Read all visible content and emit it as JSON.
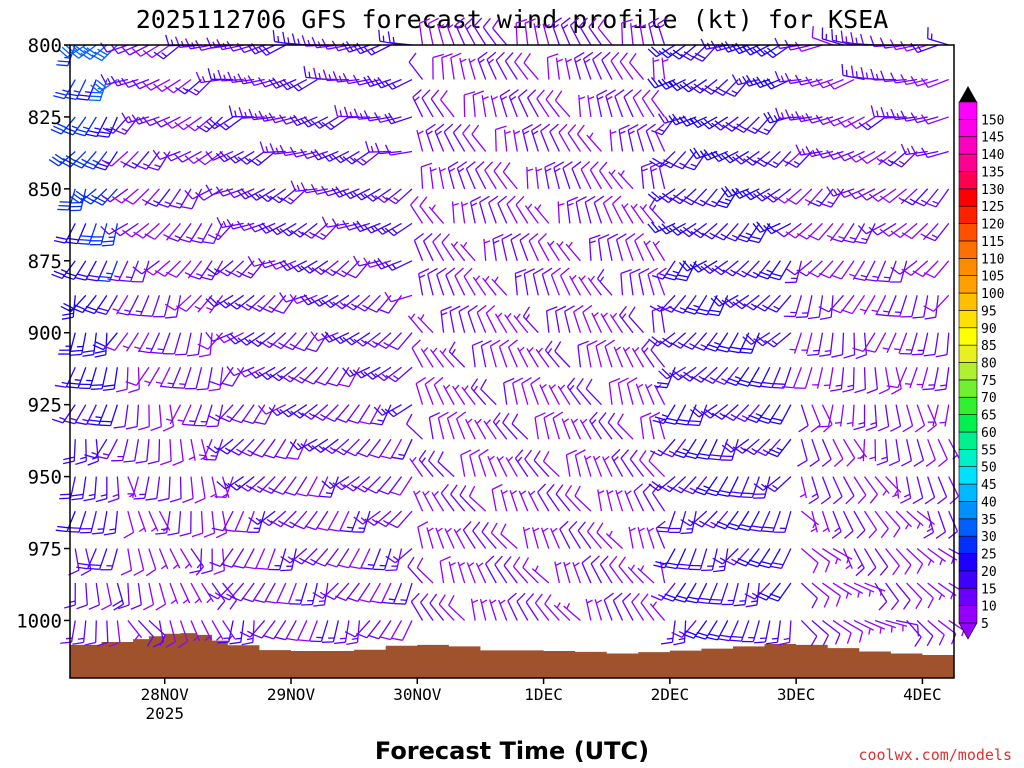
{
  "chart_data": {
    "type": "wind-profile",
    "title": "2025112706 GFS forecast wind profile (kt) for KSEA",
    "xlabel": "Forecast Time (UTC)",
    "ylabel": "",
    "watermark": "coolwx.com/models",
    "y_axis": {
      "unit": "hPa",
      "range": [
        800,
        1020
      ],
      "ticks": [
        800,
        825,
        850,
        875,
        900,
        925,
        950,
        975,
        1000
      ]
    },
    "x_axis": {
      "unit": "hours since 2025-11-28 00Z",
      "range": [
        -18,
        150
      ],
      "ticks": [
        {
          "hour": 0,
          "label": "28NOV",
          "sublabel": "2025"
        },
        {
          "hour": 24,
          "label": "29NOV",
          "sublabel": ""
        },
        {
          "hour": 48,
          "label": "30NOV",
          "sublabel": ""
        },
        {
          "hour": 72,
          "label": "1DEC",
          "sublabel": ""
        },
        {
          "hour": 96,
          "label": "2DEC",
          "sublabel": ""
        },
        {
          "hour": 120,
          "label": "3DEC",
          "sublabel": ""
        },
        {
          "hour": 144,
          "label": "4DEC",
          "sublabel": ""
        }
      ]
    },
    "colorbar": {
      "levels": [
        5,
        10,
        15,
        20,
        25,
        30,
        35,
        40,
        45,
        50,
        55,
        60,
        65,
        70,
        75,
        80,
        85,
        90,
        95,
        100,
        105,
        110,
        115,
        120,
        125,
        130,
        135,
        140,
        145,
        150
      ],
      "colors": [
        "#9400ff",
        "#6a00ff",
        "#4000ff",
        "#1c00ff",
        "#0030ff",
        "#0060ff",
        "#0090ff",
        "#00b8ff",
        "#00e0ff",
        "#00f0c8",
        "#00f090",
        "#00f050",
        "#30f030",
        "#70f030",
        "#b0f030",
        "#e8f020",
        "#ffff00",
        "#ffe000",
        "#ffc000",
        "#ffa000",
        "#ff8c00",
        "#ff7000",
        "#ff5000",
        "#ff2000",
        "#ff0000",
        "#ff0050",
        "#ff0090",
        "#ff00c0",
        "#ff00e8",
        "#ff00ff"
      ]
    },
    "terrain": {
      "color": "#a0522d",
      "surface_pressure": [
        {
          "hour": -18,
          "p": 1008.5
        },
        {
          "hour": -12,
          "p": 1007.5
        },
        {
          "hour": -6,
          "p": 1006.5
        },
        {
          "hour": -3,
          "p": 1005.5
        },
        {
          "hour": 0,
          "p": 1004.6
        },
        {
          "hour": 3,
          "p": 1004.4
        },
        {
          "hour": 6,
          "p": 1005.0
        },
        {
          "hour": 9,
          "p": 1007.0
        },
        {
          "hour": 12,
          "p": 1008.6
        },
        {
          "hour": 18,
          "p": 1010.3
        },
        {
          "hour": 24,
          "p": 1010.6
        },
        {
          "hour": 36,
          "p": 1010.2
        },
        {
          "hour": 42,
          "p": 1008.8
        },
        {
          "hour": 48,
          "p": 1008.5
        },
        {
          "hour": 54,
          "p": 1009.0
        },
        {
          "hour": 60,
          "p": 1010.4
        },
        {
          "hour": 72,
          "p": 1010.6
        },
        {
          "hour": 78,
          "p": 1010.9
        },
        {
          "hour": 84,
          "p": 1011.5
        },
        {
          "hour": 90,
          "p": 1011.0
        },
        {
          "hour": 96,
          "p": 1010.5
        },
        {
          "hour": 102,
          "p": 1009.8
        },
        {
          "hour": 108,
          "p": 1009.0
        },
        {
          "hour": 114,
          "p": 1008.2
        },
        {
          "hour": 120,
          "p": 1008.5
        },
        {
          "hour": 126,
          "p": 1009.6
        },
        {
          "hour": 132,
          "p": 1010.8
        },
        {
          "hour": 138,
          "p": 1011.5
        },
        {
          "hour": 144,
          "p": 1012.0
        },
        {
          "hour": 150,
          "p": 1012.0
        }
      ]
    },
    "barb_columns": [
      -17,
      -15,
      -13,
      -11,
      -9,
      -7,
      -5,
      -3,
      -1,
      1,
      3,
      5,
      7,
      9,
      11,
      13,
      15,
      17,
      19,
      21,
      23,
      25,
      27,
      29,
      31,
      33,
      35,
      37,
      39,
      41,
      43,
      45,
      47,
      49,
      51,
      53,
      55,
      57,
      59,
      61,
      63,
      65,
      67,
      69,
      71,
      73,
      75,
      77,
      79,
      81,
      83,
      85,
      87,
      89,
      91,
      93,
      95,
      97,
      99,
      101,
      103,
      105,
      107,
      109,
      111,
      113,
      115,
      117,
      119,
      121,
      123,
      125,
      127,
      129,
      131,
      133,
      135,
      137,
      139,
      141,
      143,
      145,
      147,
      149
    ],
    "barb_levels": [
      800,
      812,
      825,
      837,
      850,
      862,
      875,
      887,
      900,
      912,
      925,
      937,
      950,
      962,
      975,
      987,
      1000,
      1012
    ],
    "wind_regimes": [
      {
        "from_hour": -18,
        "to_hour": -7,
        "upper_dir_deg": 220,
        "upper_speed_kt": 30,
        "lower_dir_deg": 180,
        "lower_speed_kt": 12
      },
      {
        "from_hour": -7,
        "to_hour": 12,
        "upper_dir_deg": 250,
        "upper_speed_kt": 12,
        "lower_dir_deg": 150,
        "lower_speed_kt": 8
      },
      {
        "from_hour": 12,
        "to_hour": 48,
        "upper_dir_deg": 260,
        "upper_speed_kt": 15,
        "lower_dir_deg": 200,
        "lower_speed_kt": 12
      },
      {
        "from_hour": 48,
        "to_hour": 96,
        "upper_dir_deg": 340,
        "upper_speed_kt": 10,
        "lower_dir_deg": 330,
        "lower_speed_kt": 8
      },
      {
        "from_hour": 96,
        "to_hour": 120,
        "upper_dir_deg": 240,
        "upper_speed_kt": 20,
        "lower_dir_deg": 200,
        "lower_speed_kt": 18
      },
      {
        "from_hour": 120,
        "to_hour": 150,
        "upper_dir_deg": 270,
        "upper_speed_kt": 12,
        "lower_dir_deg": 110,
        "lower_speed_kt": 8
      }
    ]
  }
}
